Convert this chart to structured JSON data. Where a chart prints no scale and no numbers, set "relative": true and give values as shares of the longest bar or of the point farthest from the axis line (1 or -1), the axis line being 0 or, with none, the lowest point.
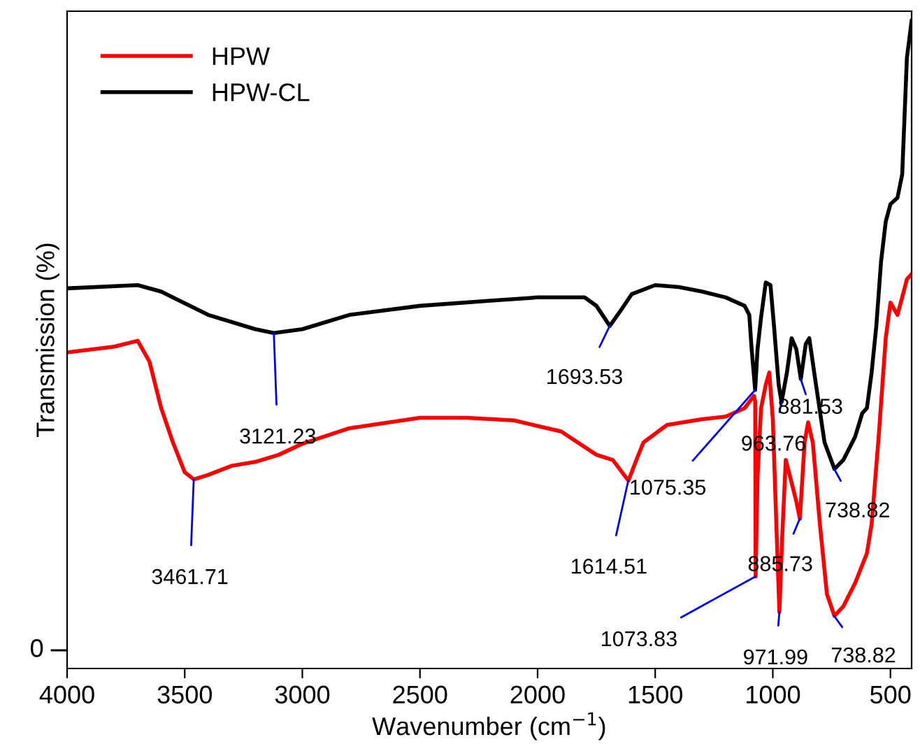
{
  "chart_data": {
    "type": "line",
    "xlabel": "Wavenumber (cm$^{−1}$)",
    "ylabel": "Transmission (%)",
    "relative": true,
    "xlim": [
      4000,
      410
    ],
    "xticks": [
      4000,
      3500,
      3000,
      2500,
      2000,
      1500,
      1000,
      500
    ],
    "legend": "top left",
    "grid": false,
    "marker": "none",
    "line_style": "solid",
    "series": [
      {
        "name": "HPW",
        "color": "#ff0000",
        "x": [
          4000,
          3800,
          3700,
          3650,
          3600,
          3550,
          3500,
          3461,
          3400,
          3300,
          3200,
          3100,
          3000,
          2800,
          2500,
          2300,
          2100,
          1900,
          1750,
          1680,
          1614,
          1580,
          1550,
          1450,
          1300,
          1200,
          1120,
          1080,
          1075,
          1073,
          1065,
          1050,
          1030,
          1015,
          1000,
          985,
          972,
          960,
          945,
          925,
          900,
          885,
          865,
          850,
          830,
          800,
          770,
          738,
          700,
          650,
          600,
          580,
          550,
          520,
          500,
          470,
          450,
          430,
          410
        ],
        "values": [
          0.488,
          0.497,
          0.506,
          0.474,
          0.402,
          0.349,
          0.303,
          0.292,
          0.299,
          0.313,
          0.319,
          0.33,
          0.347,
          0.371,
          0.387,
          0.387,
          0.383,
          0.366,
          0.33,
          0.322,
          0.29,
          0.322,
          0.349,
          0.376,
          0.385,
          0.389,
          0.402,
          0.421,
          0.412,
          0.142,
          0.294,
          0.402,
          0.438,
          0.457,
          0.385,
          0.223,
          0.087,
          0.204,
          0.322,
          0.294,
          0.258,
          0.231,
          0.349,
          0.38,
          0.349,
          0.223,
          0.115,
          0.081,
          0.096,
          0.132,
          0.178,
          0.223,
          0.358,
          0.51,
          0.565,
          0.546,
          0.573,
          0.601,
          0.609
        ]
      },
      {
        "name": "HPW-CL",
        "color": "#000000",
        "x": [
          4000,
          3700,
          3600,
          3400,
          3200,
          3121,
          3000,
          2800,
          2500,
          2200,
          2000,
          1800,
          1750,
          1693,
          1650,
          1600,
          1500,
          1400,
          1300,
          1200,
          1120,
          1100,
          1090,
          1075,
          1065,
          1050,
          1030,
          1010,
          995,
          975,
          963,
          940,
          920,
          900,
          881,
          860,
          845,
          820,
          780,
          738,
          700,
          650,
          620,
          600,
          580,
          560,
          540,
          520,
          500,
          470,
          450,
          430,
          410
        ],
        "values": [
          0.587,
          0.592,
          0.582,
          0.546,
          0.524,
          0.518,
          0.524,
          0.546,
          0.56,
          0.568,
          0.573,
          0.573,
          0.56,
          0.529,
          0.551,
          0.578,
          0.592,
          0.589,
          0.582,
          0.573,
          0.56,
          0.546,
          0.493,
          0.43,
          0.493,
          0.542,
          0.596,
          0.592,
          0.529,
          0.438,
          0.411,
          0.457,
          0.51,
          0.493,
          0.447,
          0.501,
          0.51,
          0.447,
          0.349,
          0.308,
          0.322,
          0.358,
          0.394,
          0.402,
          0.457,
          0.529,
          0.628,
          0.69,
          0.717,
          0.727,
          0.763,
          0.943,
          1.0
        ]
      }
    ],
    "annotations": [
      {
        "text": "3121.23",
        "x": 3121.23,
        "y": 0.518
      },
      {
        "text": "1693.53",
        "x": 1693.53,
        "y": 0.529
      },
      {
        "text": "3461.71",
        "x": 3461.71,
        "y": 0.292
      },
      {
        "text": "1614.51",
        "x": 1614.51,
        "y": 0.29
      },
      {
        "text": "1075.35",
        "x": 1075.35,
        "y": 0.43
      },
      {
        "text": "963.76",
        "x": 963.76,
        "y": 0.411
      },
      {
        "text": "881.53",
        "x": 881.53,
        "y": 0.447
      },
      {
        "text": "738.82",
        "x": 738.82,
        "y": 0.308
      },
      {
        "text": "885.73",
        "x": 885.73,
        "y": 0.231
      },
      {
        "text": "1073.83",
        "x": 1073.83,
        "y": 0.142
      },
      {
        "text": "971.99",
        "x": 971.99,
        "y": 0.087
      },
      {
        "text": "738.82",
        "x": 738.82,
        "y": 0.081
      },
      "0"
    ]
  }
}
